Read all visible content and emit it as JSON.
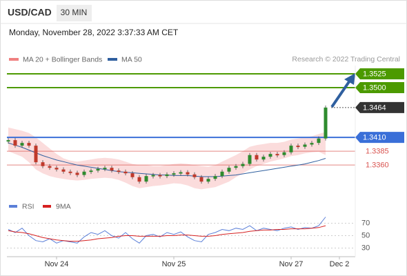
{
  "header": {
    "symbol": "USD/CAD",
    "interval": "30 MIN",
    "timestamp": "Monday, November 28, 2022 3:37:33 AM CET"
  },
  "chart_data": [
    {
      "type": "candlestick",
      "source": "Research © 2022 Trading Central",
      "xlim": [
        0,
        50
      ],
      "xticks": [
        {
          "value": 7,
          "label": "Nov 24"
        },
        {
          "value": 24,
          "label": "Nov 25"
        },
        {
          "value": 41,
          "label": "Nov 27"
        },
        {
          "value": 48,
          "label": "Dec 2"
        }
      ],
      "ylim": [
        1.3304,
        1.354
      ],
      "up_color": "#2e8b2e",
      "down_color": "#c0392b",
      "close": [
        1.3405,
        1.3395,
        1.34,
        1.3395,
        1.3365,
        1.3358,
        1.3355,
        1.3352,
        1.3348,
        1.3346,
        1.3342,
        1.3348,
        1.335,
        1.3353,
        1.3355,
        1.335,
        1.3348,
        1.3345,
        1.3338,
        1.333,
        1.334,
        1.3342,
        1.334,
        1.3343,
        1.3345,
        1.3347,
        1.3343,
        1.3338,
        1.333,
        1.3335,
        1.334,
        1.3348,
        1.3355,
        1.3358,
        1.3362,
        1.3378,
        1.337,
        1.3375,
        1.338,
        1.3378,
        1.3383,
        1.3395,
        1.3393,
        1.3397,
        1.34,
        1.3408,
        1.3464
      ],
      "bands": {
        "name": "MA 20 + Bollinger Bands",
        "color": "#f08080",
        "upper": [
          1.3428,
          1.3425,
          1.3422,
          1.3418,
          1.341,
          1.34,
          1.339,
          1.338,
          1.3372,
          1.3368,
          1.3366,
          1.3368,
          1.337,
          1.3372,
          1.3373,
          1.3372,
          1.337,
          1.3366,
          1.3362,
          1.336,
          1.336,
          1.3358,
          1.3358,
          1.336,
          1.3362,
          1.3363,
          1.3362,
          1.336,
          1.3358,
          1.3357,
          1.336,
          1.3366,
          1.3372,
          1.3378,
          1.3385,
          1.3393,
          1.3396,
          1.3398,
          1.34,
          1.34,
          1.3402,
          1.3406,
          1.3408,
          1.341,
          1.3412,
          1.3416,
          1.342
        ],
        "lower": [
          1.3385,
          1.338,
          1.3375,
          1.3365,
          1.3352,
          1.3345,
          1.334,
          1.3337,
          1.3335,
          1.3333,
          1.3332,
          1.3333,
          1.3335,
          1.3336,
          1.3337,
          1.3336,
          1.3333,
          1.3328,
          1.3322,
          1.3318,
          1.332,
          1.3322,
          1.3323,
          1.3325,
          1.3327,
          1.3326,
          1.3323,
          1.3318,
          1.3316,
          1.3318,
          1.332,
          1.3325,
          1.333,
          1.3338,
          1.3345,
          1.3352,
          1.3358,
          1.3362,
          1.3366,
          1.3369,
          1.3372,
          1.3376,
          1.3378,
          1.3381,
          1.3383,
          1.3384,
          1.3378
        ]
      },
      "ma50": {
        "name": "MA 50",
        "color": "#2f5f9f",
        "values": [
          1.34,
          1.3396,
          1.3392,
          1.3387,
          1.3382,
          1.3377,
          1.3373,
          1.3369,
          1.3366,
          1.3363,
          1.336,
          1.3358,
          1.3356,
          1.3354,
          1.3352,
          1.335,
          1.3348,
          1.3347,
          1.3346,
          1.3345,
          1.3344,
          1.3343,
          1.3342,
          1.3342,
          1.3341,
          1.3341,
          1.3341,
          1.334,
          1.3339,
          1.3339,
          1.3339,
          1.334,
          1.3341,
          1.3342,
          1.3344,
          1.3346,
          1.3348,
          1.335,
          1.3352,
          1.3354,
          1.3356,
          1.3358,
          1.336,
          1.3362,
          1.3365,
          1.3368,
          1.3372
        ]
      },
      "levels": [
        {
          "value": 1.3525,
          "label": "1.3525",
          "color": "#4c9a00",
          "boxed": true
        },
        {
          "value": 1.35,
          "label": "1.3500",
          "color": "#4c9a00",
          "boxed": true
        },
        {
          "value": 1.3464,
          "label": "1.3464",
          "color": "#333333",
          "boxed": true
        },
        {
          "value": 1.341,
          "label": "1.3410",
          "color": "#3a6fd8",
          "boxed": true
        },
        {
          "value": 1.3385,
          "label": "1.3385",
          "color": "#d9534f",
          "boxed": false
        },
        {
          "value": 1.336,
          "label": "1.3360",
          "color": "#d9534f",
          "boxed": false
        }
      ]
    },
    {
      "type": "line",
      "xlim": [
        0,
        50
      ],
      "ylim": [
        15,
        85
      ],
      "yticks": [
        30,
        50,
        70
      ],
      "series": [
        {
          "name": "RSI",
          "color": "#5b7fd8",
          "values": [
            60,
            55,
            62,
            50,
            42,
            40,
            45,
            38,
            42,
            40,
            38,
            48,
            55,
            52,
            58,
            50,
            46,
            55,
            45,
            38,
            50,
            52,
            48,
            55,
            52,
            56,
            48,
            42,
            40,
            52,
            55,
            60,
            58,
            62,
            60,
            66,
            58,
            62,
            60,
            58,
            62,
            64,
            60,
            63,
            62,
            66,
            80
          ]
        },
        {
          "name": "9MA",
          "color": "#d62020",
          "values": [
            58,
            56,
            55,
            53,
            50,
            47,
            45,
            43,
            42,
            41,
            41,
            42,
            43,
            45,
            46,
            47,
            49,
            50,
            50,
            49,
            49,
            49,
            49,
            50,
            50,
            51,
            51,
            50,
            49,
            49,
            50,
            52,
            53,
            54,
            55,
            57,
            58,
            59,
            59,
            60,
            60,
            61,
            61,
            61,
            62,
            63,
            66
          ]
        }
      ]
    }
  ]
}
